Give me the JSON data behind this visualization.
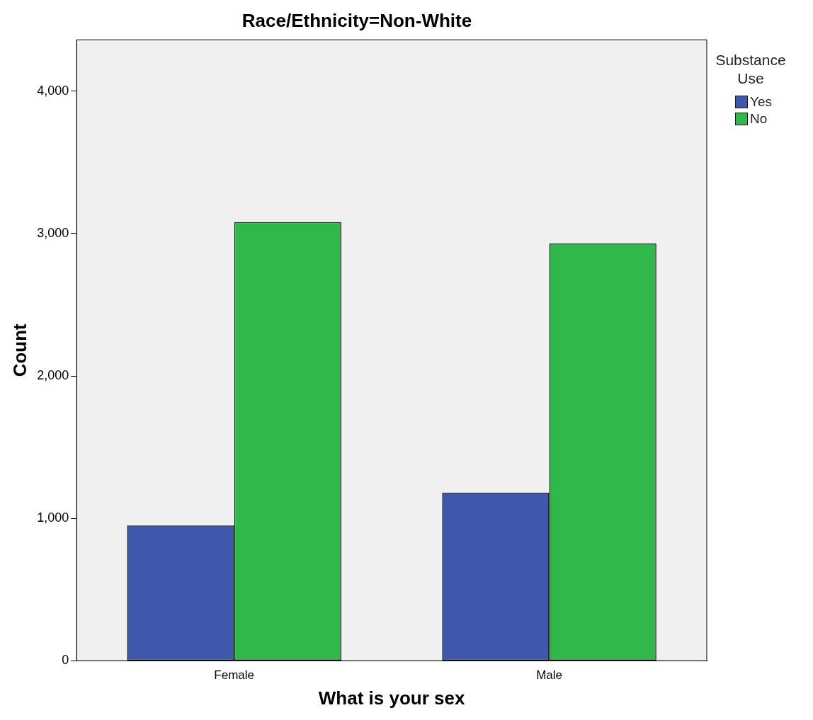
{
  "chart_data": {
    "type": "bar",
    "title": "Race/Ethnicity=Non-White",
    "xlabel": "What is your sex",
    "ylabel": "Count",
    "legend_title": "Substance Use",
    "categories": [
      "Female",
      "Male"
    ],
    "series": [
      {
        "name": "Yes",
        "color": "#3e58ac",
        "values": [
          950,
          1180
        ]
      },
      {
        "name": "No",
        "color": "#30b84a",
        "values": [
          3080,
          2930
        ]
      }
    ],
    "ylim": [
      0,
      4360
    ],
    "yticks": [
      {
        "value": 0,
        "label": "0"
      },
      {
        "value": 1000,
        "label": "1,000"
      },
      {
        "value": 2000,
        "label": "2,000"
      },
      {
        "value": 3000,
        "label": "3,000"
      },
      {
        "value": 4000,
        "label": "4,000"
      }
    ],
    "grid": false,
    "legend": "top right"
  }
}
